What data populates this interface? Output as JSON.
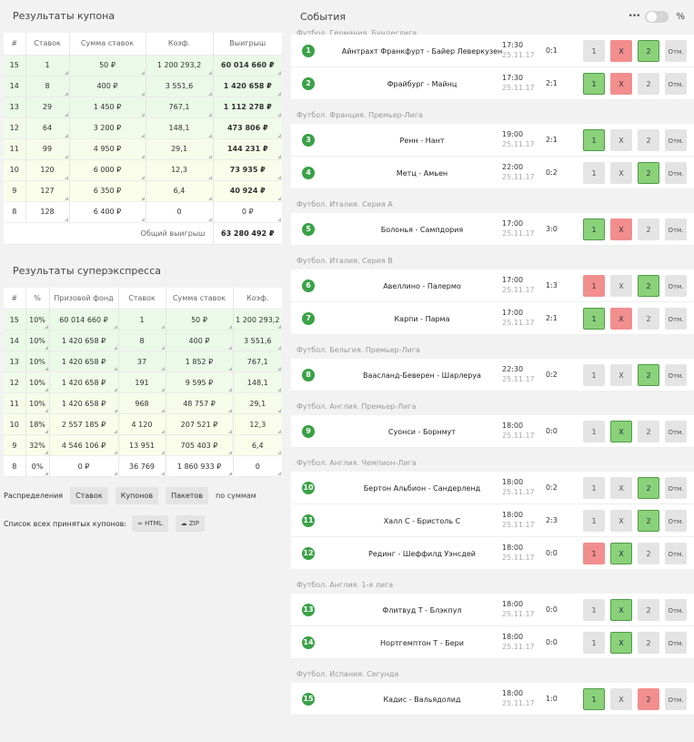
{
  "coupon": {
    "title": "Результаты купона",
    "headers": [
      "#",
      "Ставок",
      "Сумма ставок",
      "Коэф.",
      "Выигрыш"
    ],
    "rows": [
      [
        "15",
        "1",
        "50 ₽",
        "1 200 293,2",
        "60 014 660 ₽"
      ],
      [
        "14",
        "8",
        "400 ₽",
        "3 551,6",
        "1 420 658 ₽"
      ],
      [
        "13",
        "29",
        "1 450 ₽",
        "767,1",
        "1 112 278 ₽"
      ],
      [
        "12",
        "64",
        "3 200 ₽",
        "148,1",
        "473 806 ₽"
      ],
      [
        "11",
        "99",
        "4 950 ₽",
        "29,1",
        "144 231 ₽"
      ],
      [
        "10",
        "120",
        "6 000 ₽",
        "12,3",
        "73 935 ₽"
      ],
      [
        "9",
        "127",
        "6 350 ₽",
        "6,4",
        "40 924 ₽"
      ],
      [
        "8",
        "128",
        "6 400 ₽",
        "0",
        "0 ₽"
      ]
    ],
    "total_label": "Общий выигрыш",
    "total_value": "63 280 492 ₽"
  },
  "superexpress": {
    "title": "Результаты суперэкспресса",
    "headers": [
      "#",
      "%",
      "Призовой фонд",
      "Ставок",
      "Сумма ставок",
      "Коэф."
    ],
    "rows": [
      [
        "15",
        "10%",
        "60 014 660 ₽",
        "1",
        "50 ₽",
        "1 200 293,2"
      ],
      [
        "14",
        "10%",
        "1 420 658 ₽",
        "8",
        "400 ₽",
        "3 551,6"
      ],
      [
        "13",
        "10%",
        "1 420 658 ₽",
        "37",
        "1 852 ₽",
        "767,1"
      ],
      [
        "12",
        "10%",
        "1 420 658 ₽",
        "191",
        "9 595 ₽",
        "148,1"
      ],
      [
        "11",
        "10%",
        "1 420 658 ₽",
        "968",
        "48 757 ₽",
        "29,1"
      ],
      [
        "10",
        "18%",
        "2 557 185 ₽",
        "4 120",
        "207 521 ₽",
        "12,3"
      ],
      [
        "9",
        "32%",
        "4 546 106 ₽",
        "13 951",
        "705 403 ₽",
        "6,4"
      ],
      [
        "8",
        "0%",
        "0 ₽",
        "36 769",
        "1 860 933 ₽",
        "0"
      ]
    ]
  },
  "distribution": {
    "label": "Распределения",
    "buttons": [
      "Ставок",
      "Купонов",
      "Пакетов"
    ],
    "suffix": "по суммам"
  },
  "coupon_list": {
    "label": "Список всех принятых купонов:",
    "html_label": "HTML",
    "zip_label": "ZIP",
    "html_icon": "link-icon",
    "zip_icon": "cloud-download-icon"
  },
  "events": {
    "title": "События",
    "menu_icon": "more-dots-icon",
    "percent_label": "%",
    "toggle_on": false,
    "groups": [
      {
        "league": "Футбол. Германия. Бундеслига",
        "items": [
          {
            "n": "1",
            "teams": "Айнтрахт Франкфурт - Байер Леверкузен",
            "time": "17:30",
            "date": "25.11.17",
            "score": "0:1",
            "b1": "1",
            "bx": "X",
            "b2": "2",
            "c": "Отм.",
            "s1": "",
            "sx": "red",
            "s2": "green"
          },
          {
            "n": "2",
            "teams": "Фрайбург - Майнц",
            "time": "17:30",
            "date": "25.11.17",
            "score": "2:1",
            "b1": "1",
            "bx": "X",
            "b2": "2",
            "c": "Отм.",
            "s1": "green",
            "sx": "red",
            "s2": ""
          }
        ]
      },
      {
        "league": "Футбол. Франция. Премьер-Лига",
        "items": [
          {
            "n": "3",
            "teams": "Ренн - Нант",
            "time": "19:00",
            "date": "25.11.17",
            "score": "2:1",
            "b1": "1",
            "bx": "X",
            "b2": "2",
            "c": "Отм.",
            "s1": "green",
            "sx": "",
            "s2": ""
          },
          {
            "n": "4",
            "teams": "Метц - Амьен",
            "time": "22:00",
            "date": "25.11.17",
            "score": "0:2",
            "b1": "1",
            "bx": "X",
            "b2": "2",
            "c": "Отм.",
            "s1": "",
            "sx": "",
            "s2": "green"
          }
        ]
      },
      {
        "league": "Футбол. Италия. Серия А",
        "items": [
          {
            "n": "5",
            "teams": "Болонья - Сампдория",
            "time": "17:00",
            "date": "25.11.17",
            "score": "3:0",
            "b1": "1",
            "bx": "X",
            "b2": "2",
            "c": "Отм.",
            "s1": "green",
            "sx": "red",
            "s2": ""
          }
        ]
      },
      {
        "league": "Футбол. Италия. Серия В",
        "items": [
          {
            "n": "6",
            "teams": "Авеллино - Палермо",
            "time": "17:00",
            "date": "25.11.17",
            "score": "1:3",
            "b1": "1",
            "bx": "X",
            "b2": "2",
            "c": "Отм.",
            "s1": "red",
            "sx": "",
            "s2": "green"
          },
          {
            "n": "7",
            "teams": "Карпи - Парма",
            "time": "17:00",
            "date": "25.11.17",
            "score": "2:1",
            "b1": "1",
            "bx": "X",
            "b2": "2",
            "c": "Отм.",
            "s1": "green",
            "sx": "red",
            "s2": ""
          }
        ]
      },
      {
        "league": "Футбол. Бельгия. Премьер-Лига",
        "items": [
          {
            "n": "8",
            "teams": "Вaасланд-Беверен - Шарлеруа",
            "time": "22:30",
            "date": "25.11.17",
            "score": "0:2",
            "b1": "1",
            "bx": "X",
            "b2": "2",
            "c": "Отм.",
            "s1": "",
            "sx": "",
            "s2": "green"
          }
        ]
      },
      {
        "league": "Футбол. Англия. Премьер-Лига",
        "items": [
          {
            "n": "9",
            "teams": "Суонси - Борнмут",
            "time": "18:00",
            "date": "25.11.17",
            "score": "0:0",
            "b1": "1",
            "bx": "X",
            "b2": "2",
            "c": "Отм.",
            "s1": "",
            "sx": "green",
            "s2": ""
          }
        ]
      },
      {
        "league": "Футбол. Англия. Чемпион-Лига",
        "items": [
          {
            "n": "10",
            "teams": "Бертон Альбион - Сандерленд",
            "time": "18:00",
            "date": "25.11.17",
            "score": "0:2",
            "b1": "1",
            "bx": "X",
            "b2": "2",
            "c": "Отм.",
            "s1": "",
            "sx": "",
            "s2": "green"
          },
          {
            "n": "11",
            "teams": "Халл С - Бристоль С",
            "time": "18:00",
            "date": "25.11.17",
            "score": "2:3",
            "b1": "1",
            "bx": "X",
            "b2": "2",
            "c": "Отм.",
            "s1": "",
            "sx": "",
            "s2": "green"
          },
          {
            "n": "12",
            "teams": "Рединг - Шеффилд Уэнсдей",
            "time": "18:00",
            "date": "25.11.17",
            "score": "0:0",
            "b1": "1",
            "bx": "X",
            "b2": "2",
            "c": "Отм.",
            "s1": "red",
            "sx": "green",
            "s2": ""
          }
        ]
      },
      {
        "league": "Футбол. Англия. 1-я лига",
        "items": [
          {
            "n": "13",
            "teams": "Флитвуд Т - Блэкпул",
            "time": "18:00",
            "date": "25.11.17",
            "score": "0:0",
            "b1": "1",
            "bx": "X",
            "b2": "2",
            "c": "Отм.",
            "s1": "",
            "sx": "green",
            "s2": ""
          },
          {
            "n": "14",
            "teams": "Нортгемптон Т - Бери",
            "time": "18:00",
            "date": "25.11.17",
            "score": "0:0",
            "b1": "1",
            "bx": "X",
            "b2": "2",
            "c": "Отм.",
            "s1": "",
            "sx": "green",
            "s2": ""
          }
        ]
      },
      {
        "league": "Футбол. Испания. Сегунда",
        "items": [
          {
            "n": "15",
            "teams": "Кадис - Вальядолид",
            "time": "18:00",
            "date": "25.11.17",
            "score": "1:0",
            "b1": "1",
            "bx": "X",
            "b2": "2",
            "c": "Отм.",
            "s1": "green",
            "sx": "",
            "s2": "red"
          }
        ]
      }
    ]
  }
}
